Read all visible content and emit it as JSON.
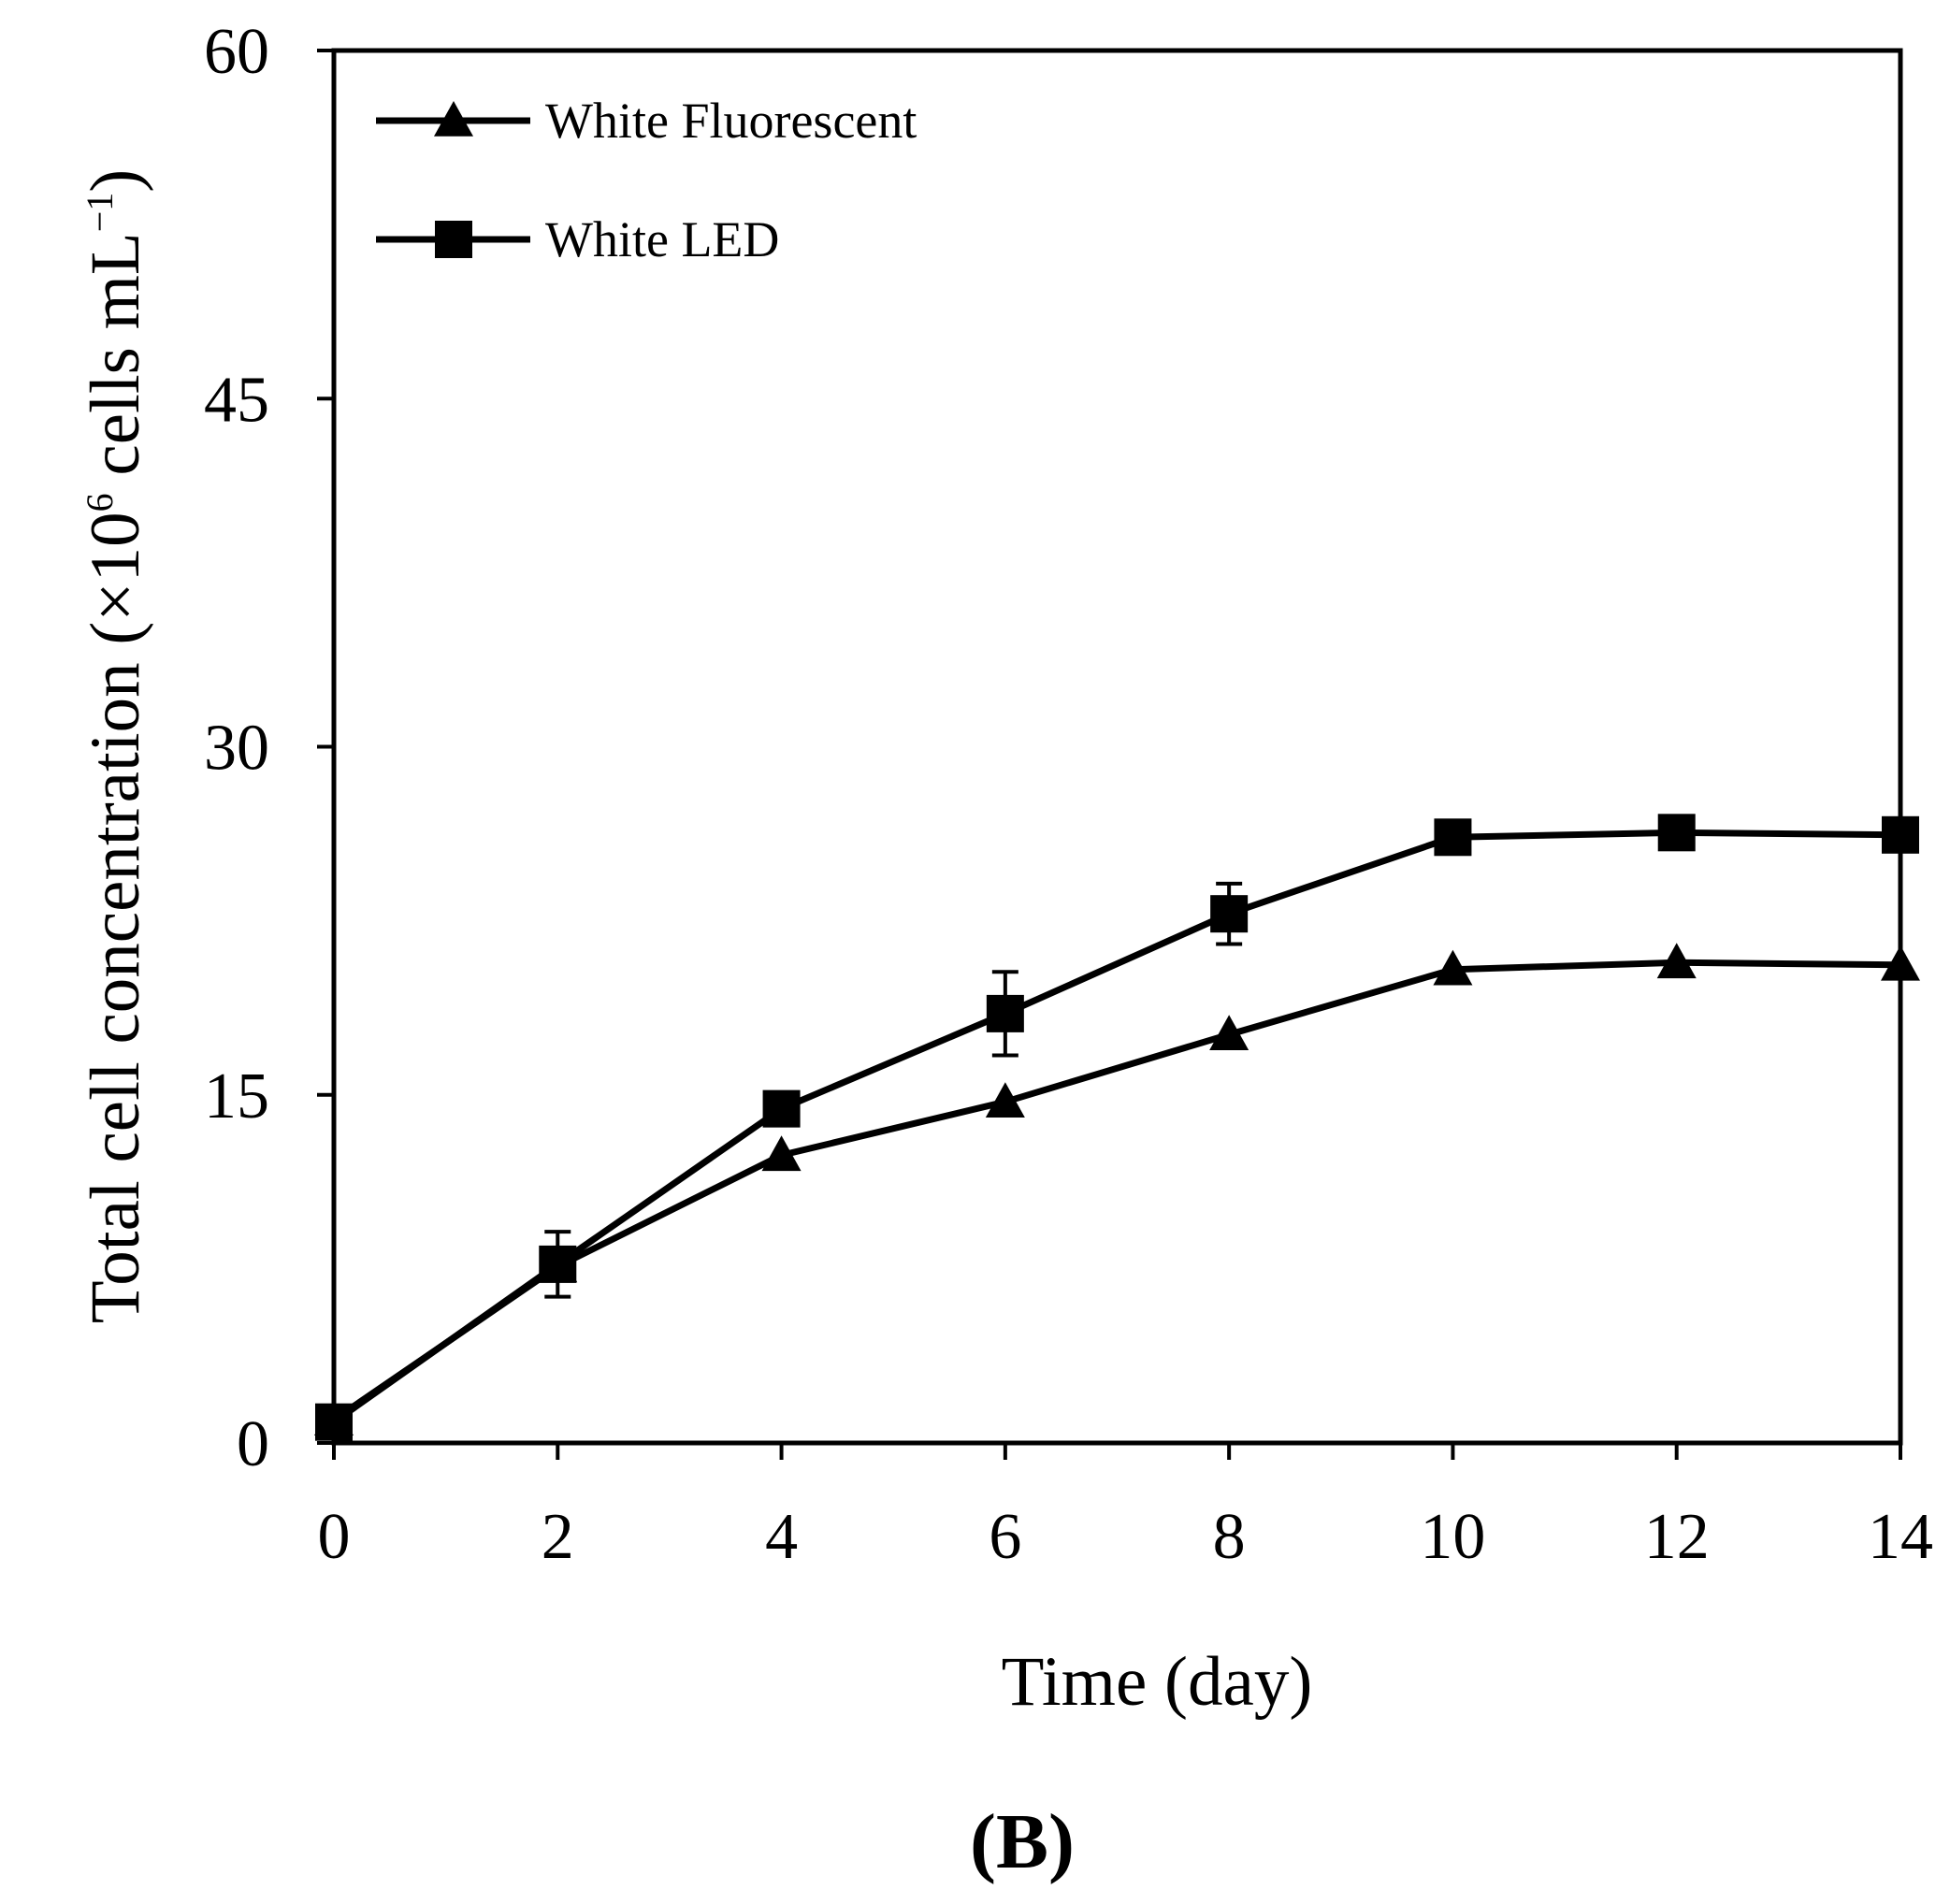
{
  "chart_data": {
    "type": "line",
    "panel_label": "(B)",
    "xlabel": "Time (day)",
    "ylabel": {
      "prefix": "Total cell concentration (×10",
      "exp1": "6",
      "middle": " cells mL",
      "exp2": "−1",
      "suffix": ")"
    },
    "xlim": [
      0,
      14
    ],
    "ylim": [
      0,
      60
    ],
    "x_ticks": [
      0,
      2,
      4,
      6,
      8,
      10,
      12,
      14
    ],
    "y_ticks": [
      0,
      15,
      30,
      45,
      60
    ],
    "x_tick_labels": [
      "0",
      "2",
      "4",
      "6",
      "8",
      "10",
      "12",
      "14"
    ],
    "y_tick_labels": [
      "0",
      "15",
      "30",
      "45",
      "60"
    ],
    "grid": false,
    "legend_position": "top-left",
    "series": [
      {
        "name": "White Fluorescent",
        "marker": "triangle",
        "x": [
          0,
          2,
          4,
          6,
          8,
          10,
          12,
          14
        ],
        "values": [
          1.0,
          7.6,
          12.4,
          14.7,
          17.6,
          20.4,
          20.7,
          20.6
        ],
        "errors": [
          0,
          0,
          0,
          0,
          0,
          0,
          0,
          0
        ]
      },
      {
        "name": "White LED",
        "marker": "square",
        "x": [
          0,
          2,
          4,
          6,
          8,
          10,
          12,
          14
        ],
        "values": [
          0.9,
          7.7,
          14.4,
          18.5,
          22.8,
          26.1,
          26.3,
          26.2
        ],
        "errors": [
          0,
          1.4,
          0,
          1.8,
          1.3,
          0,
          0,
          0
        ]
      }
    ],
    "colors": {
      "line": "#000000",
      "background": "#ffffff"
    }
  }
}
